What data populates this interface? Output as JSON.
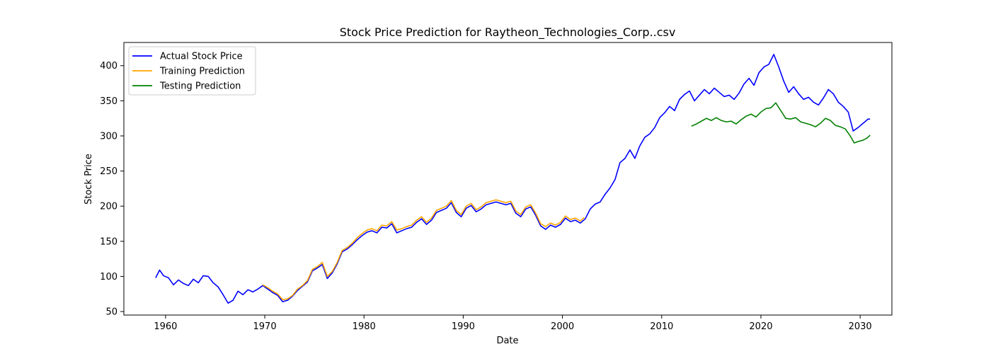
{
  "chart_data": {
    "type": "line",
    "title": "Stock Price Prediction for Raytheon_Technologies_Corp..csv",
    "xlabel": "Date",
    "ylabel": "Stock Price",
    "xlim": [
      1955.8,
      2033.2
    ],
    "ylim": [
      45,
      433
    ],
    "x_ticks": [
      1960,
      1970,
      1980,
      1990,
      2000,
      2010,
      2020,
      2030
    ],
    "y_ticks": [
      50,
      100,
      150,
      200,
      250,
      300,
      350,
      400
    ],
    "grid": false,
    "legend_position": "top-left",
    "series": [
      {
        "name": "Actual Stock Price",
        "color": "#0000ff",
        "points": [
          [
            1959.0,
            98
          ],
          [
            1959.4,
            109
          ],
          [
            1959.8,
            101
          ],
          [
            1960.3,
            98
          ],
          [
            1960.8,
            88
          ],
          [
            1961.3,
            95
          ],
          [
            1961.8,
            90
          ],
          [
            1962.3,
            87
          ],
          [
            1962.8,
            96
          ],
          [
            1963.3,
            91
          ],
          [
            1963.8,
            101
          ],
          [
            1964.3,
            100
          ],
          [
            1964.8,
            91
          ],
          [
            1965.3,
            85
          ],
          [
            1965.8,
            74
          ],
          [
            1966.3,
            62
          ],
          [
            1966.8,
            66
          ],
          [
            1967.3,
            79
          ],
          [
            1967.8,
            74
          ],
          [
            1968.3,
            81
          ],
          [
            1968.8,
            78
          ],
          [
            1969.3,
            82
          ],
          [
            1969.8,
            87
          ],
          [
            1970.3,
            82
          ],
          [
            1970.8,
            77
          ],
          [
            1971.3,
            73
          ],
          [
            1971.8,
            64
          ],
          [
            1972.3,
            66
          ],
          [
            1972.8,
            72
          ],
          [
            1973.3,
            80
          ],
          [
            1973.8,
            86
          ],
          [
            1974.3,
            92
          ],
          [
            1974.8,
            108
          ],
          [
            1975.3,
            112
          ],
          [
            1975.8,
            117
          ],
          [
            1976.3,
            97
          ],
          [
            1976.8,
            105
          ],
          [
            1977.3,
            118
          ],
          [
            1977.8,
            135
          ],
          [
            1978.3,
            139
          ],
          [
            1978.8,
            145
          ],
          [
            1979.3,
            152
          ],
          [
            1979.8,
            158
          ],
          [
            1980.3,
            163
          ],
          [
            1980.8,
            165
          ],
          [
            1981.3,
            162
          ],
          [
            1981.8,
            170
          ],
          [
            1982.3,
            169
          ],
          [
            1982.8,
            175
          ],
          [
            1983.3,
            162
          ],
          [
            1983.8,
            165
          ],
          [
            1984.3,
            168
          ],
          [
            1984.8,
            170
          ],
          [
            1985.3,
            177
          ],
          [
            1985.8,
            182
          ],
          [
            1986.3,
            174
          ],
          [
            1986.8,
            180
          ],
          [
            1987.3,
            191
          ],
          [
            1987.8,
            194
          ],
          [
            1988.3,
            197
          ],
          [
            1988.8,
            205
          ],
          [
            1989.3,
            191
          ],
          [
            1989.8,
            185
          ],
          [
            1990.3,
            197
          ],
          [
            1990.8,
            201
          ],
          [
            1991.3,
            192
          ],
          [
            1991.8,
            196
          ],
          [
            1992.3,
            202
          ],
          [
            1992.8,
            204
          ],
          [
            1993.3,
            206
          ],
          [
            1993.8,
            204
          ],
          [
            1994.3,
            202
          ],
          [
            1994.8,
            204
          ],
          [
            1995.3,
            190
          ],
          [
            1995.8,
            185
          ],
          [
            1996.3,
            196
          ],
          [
            1996.8,
            199
          ],
          [
            1997.3,
            187
          ],
          [
            1997.8,
            172
          ],
          [
            1998.3,
            167
          ],
          [
            1998.8,
            173
          ],
          [
            1999.3,
            170
          ],
          [
            1999.8,
            174
          ],
          [
            2000.3,
            183
          ],
          [
            2000.8,
            178
          ],
          [
            2001.3,
            180
          ],
          [
            2001.8,
            176
          ],
          [
            2002.3,
            182
          ],
          [
            2002.8,
            196
          ],
          [
            2003.3,
            203
          ],
          [
            2003.8,
            206
          ],
          [
            2004.3,
            217
          ],
          [
            2004.8,
            226
          ],
          [
            2005.3,
            238
          ],
          [
            2005.8,
            262
          ],
          [
            2006.3,
            268
          ],
          [
            2006.8,
            280
          ],
          [
            2007.3,
            268
          ],
          [
            2007.8,
            286
          ],
          [
            2008.3,
            298
          ],
          [
            2008.8,
            303
          ],
          [
            2009.3,
            312
          ],
          [
            2009.8,
            326
          ],
          [
            2010.3,
            333
          ],
          [
            2010.8,
            342
          ],
          [
            2011.3,
            336
          ],
          [
            2011.8,
            352
          ],
          [
            2012.3,
            359
          ],
          [
            2012.8,
            364
          ],
          [
            2013.3,
            350
          ],
          [
            2013.8,
            358
          ],
          [
            2014.3,
            366
          ],
          [
            2014.8,
            360
          ],
          [
            2015.3,
            368
          ],
          [
            2015.8,
            362
          ],
          [
            2016.3,
            356
          ],
          [
            2016.8,
            358
          ],
          [
            2017.3,
            352
          ],
          [
            2017.8,
            361
          ],
          [
            2018.3,
            374
          ],
          [
            2018.8,
            382
          ],
          [
            2019.3,
            372
          ],
          [
            2019.8,
            390
          ],
          [
            2020.3,
            398
          ],
          [
            2020.8,
            402
          ],
          [
            2021.3,
            416
          ],
          [
            2021.8,
            398
          ],
          [
            2022.3,
            378
          ],
          [
            2022.8,
            362
          ],
          [
            2023.3,
            370
          ],
          [
            2023.8,
            360
          ],
          [
            2024.3,
            352
          ],
          [
            2024.8,
            355
          ],
          [
            2025.3,
            348
          ],
          [
            2025.8,
            344
          ],
          [
            2026.3,
            354
          ],
          [
            2026.8,
            366
          ],
          [
            2027.3,
            360
          ],
          [
            2027.8,
            348
          ],
          [
            2028.3,
            342
          ],
          [
            2028.8,
            334
          ],
          [
            2029.3,
            307
          ],
          [
            2029.8,
            312
          ],
          [
            2030.3,
            318
          ],
          [
            2030.8,
            324
          ],
          [
            2031.0,
            324
          ]
        ]
      },
      {
        "name": "Training Prediction",
        "color": "#ffa500",
        "points": [
          [
            1969.8,
            88
          ],
          [
            1970.3,
            84
          ],
          [
            1970.8,
            79
          ],
          [
            1971.3,
            75
          ],
          [
            1971.8,
            67
          ],
          [
            1972.3,
            68
          ],
          [
            1972.8,
            73
          ],
          [
            1973.3,
            82
          ],
          [
            1973.8,
            87
          ],
          [
            1974.3,
            94
          ],
          [
            1974.8,
            110
          ],
          [
            1975.3,
            114
          ],
          [
            1975.8,
            120
          ],
          [
            1976.3,
            100
          ],
          [
            1976.8,
            107
          ],
          [
            1977.3,
            120
          ],
          [
            1977.8,
            137
          ],
          [
            1978.3,
            141
          ],
          [
            1978.8,
            147
          ],
          [
            1979.3,
            155
          ],
          [
            1979.8,
            161
          ],
          [
            1980.3,
            166
          ],
          [
            1980.8,
            168
          ],
          [
            1981.3,
            165
          ],
          [
            1981.8,
            173
          ],
          [
            1982.3,
            172
          ],
          [
            1982.8,
            178
          ],
          [
            1983.3,
            166
          ],
          [
            1983.8,
            168
          ],
          [
            1984.3,
            171
          ],
          [
            1984.8,
            173
          ],
          [
            1985.3,
            180
          ],
          [
            1985.8,
            185
          ],
          [
            1986.3,
            177
          ],
          [
            1986.8,
            183
          ],
          [
            1987.3,
            194
          ],
          [
            1987.8,
            197
          ],
          [
            1988.3,
            200
          ],
          [
            1988.8,
            208
          ],
          [
            1989.3,
            194
          ],
          [
            1989.8,
            188
          ],
          [
            1990.3,
            200
          ],
          [
            1990.8,
            204
          ],
          [
            1991.3,
            195
          ],
          [
            1991.8,
            199
          ],
          [
            1992.3,
            205
          ],
          [
            1992.8,
            207
          ],
          [
            1993.3,
            209
          ],
          [
            1993.8,
            207
          ],
          [
            1994.3,
            205
          ],
          [
            1994.8,
            207
          ],
          [
            1995.3,
            193
          ],
          [
            1995.8,
            188
          ],
          [
            1996.3,
            199
          ],
          [
            1996.8,
            202
          ],
          [
            1997.3,
            190
          ],
          [
            1997.8,
            175
          ],
          [
            1998.3,
            171
          ],
          [
            1998.8,
            176
          ],
          [
            1999.3,
            173
          ],
          [
            1999.8,
            177
          ],
          [
            2000.3,
            186
          ],
          [
            2000.8,
            181
          ],
          [
            2001.3,
            183
          ],
          [
            2001.8,
            179
          ],
          [
            2002.2,
            184
          ]
        ]
      },
      {
        "name": "Testing Prediction",
        "color": "#008000",
        "points": [
          [
            2013.0,
            314
          ],
          [
            2013.5,
            317
          ],
          [
            2014.0,
            321
          ],
          [
            2014.5,
            325
          ],
          [
            2015.0,
            322
          ],
          [
            2015.5,
            326
          ],
          [
            2016.0,
            322
          ],
          [
            2016.5,
            320
          ],
          [
            2017.0,
            321
          ],
          [
            2017.5,
            317
          ],
          [
            2018.0,
            323
          ],
          [
            2018.5,
            328
          ],
          [
            2019.0,
            331
          ],
          [
            2019.5,
            327
          ],
          [
            2020.0,
            334
          ],
          [
            2020.5,
            339
          ],
          [
            2021.0,
            340
          ],
          [
            2021.5,
            347
          ],
          [
            2022.0,
            336
          ],
          [
            2022.5,
            325
          ],
          [
            2023.0,
            324
          ],
          [
            2023.5,
            326
          ],
          [
            2024.0,
            320
          ],
          [
            2024.5,
            318
          ],
          [
            2025.0,
            316
          ],
          [
            2025.5,
            313
          ],
          [
            2026.0,
            318
          ],
          [
            2026.5,
            325
          ],
          [
            2027.0,
            322
          ],
          [
            2027.5,
            315
          ],
          [
            2028.0,
            313
          ],
          [
            2028.5,
            310
          ],
          [
            2029.0,
            300
          ],
          [
            2029.4,
            290
          ],
          [
            2029.8,
            292
          ],
          [
            2030.3,
            294
          ],
          [
            2030.7,
            297
          ],
          [
            2031.0,
            301
          ]
        ]
      }
    ]
  }
}
